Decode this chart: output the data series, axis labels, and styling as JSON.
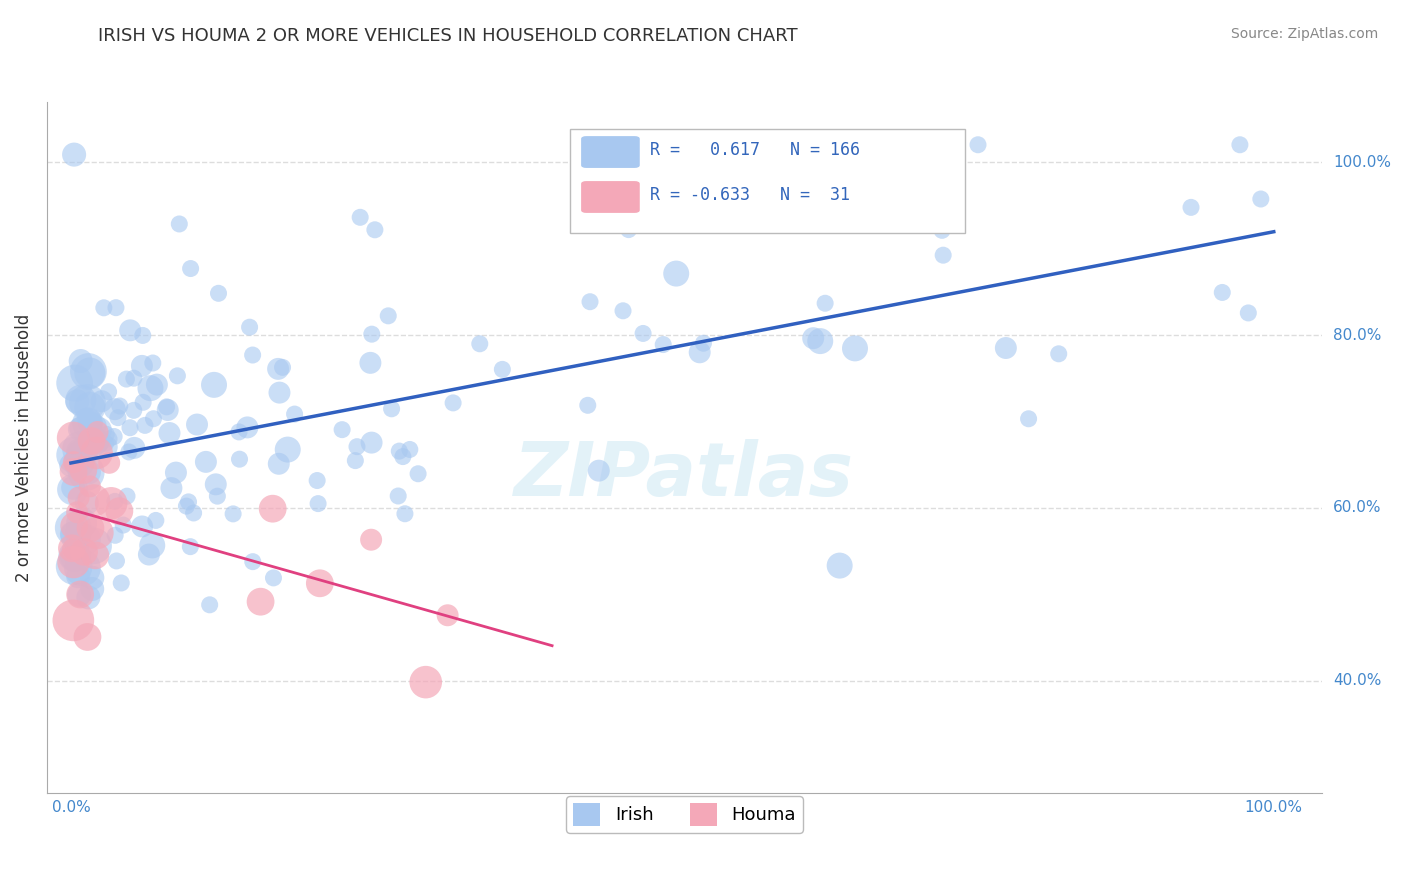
{
  "title": "IRISH VS HOUMA 2 OR MORE VEHICLES IN HOUSEHOLD CORRELATION CHART",
  "source_text": "Source: ZipAtlas.com",
  "ylabel": "2 or more Vehicles in Household",
  "x_ticks": [
    0.0,
    1.0
  ],
  "x_tick_labels": [
    "0.0%",
    "100.0%"
  ],
  "y_ticks": [
    0.4,
    0.6,
    0.8,
    1.0
  ],
  "y_tick_labels": [
    "40.0%",
    "60.0%",
    "80.0%",
    "100.0%"
  ],
  "irish_R": 0.617,
  "irish_N": 166,
  "houma_R": -0.633,
  "houma_N": 31,
  "irish_color": "#a8c8f0",
  "houma_color": "#f4a8b8",
  "irish_line_color": "#3060c0",
  "houma_line_color": "#e04080",
  "watermark": "ZIPatlas",
  "background_color": "#ffffff",
  "grid_color": "#dddddd",
  "title_color": "#333333",
  "title_fontsize": 13,
  "legend_label_irish": "Irish",
  "legend_label_houma": "Houma"
}
